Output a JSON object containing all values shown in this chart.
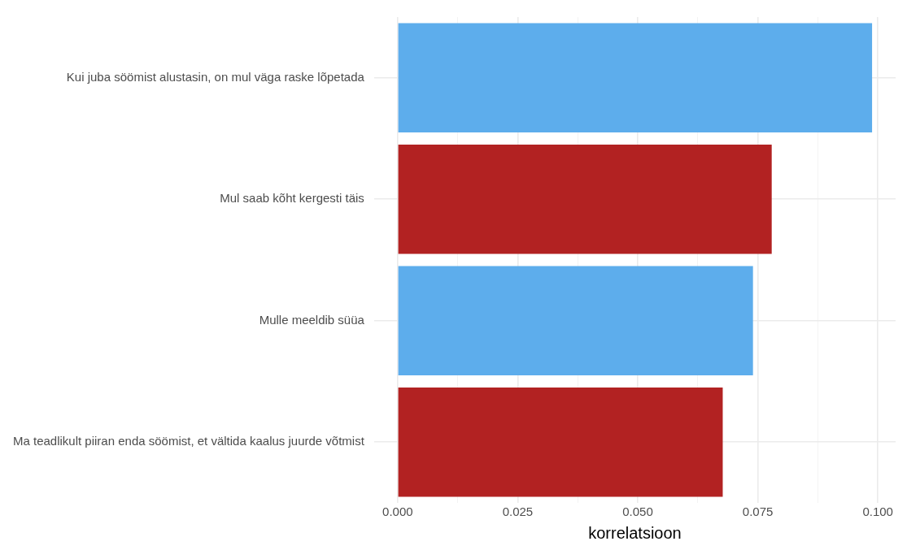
{
  "chart_data": {
    "type": "bar",
    "orientation": "horizontal",
    "xlabel": "korrelatsioon",
    "categories": [
      "Kui juba söömist alustasin, on mul väga raske lõpetada",
      "Mul saab kõht kergesti täis",
      "Mulle meeldib süüa",
      "Ma teadlikult piiran enda söömist, et vältida kaalus juurde võtmist"
    ],
    "values": [
      0.0988,
      0.0779,
      0.074,
      0.0677
    ],
    "colors": [
      "#5dadec",
      "#b22222",
      "#5dadec",
      "#b22222"
    ],
    "xlim": [
      -0.0049,
      0.1037
    ],
    "xticks": [
      {
        "value": 0,
        "label": "0.000"
      },
      {
        "value": 0.0125,
        "label": null
      },
      {
        "value": 0.025,
        "label": "0.025"
      },
      {
        "value": 0.0375,
        "label": null
      },
      {
        "value": 0.05,
        "label": "0.050"
      },
      {
        "value": 0.0625,
        "label": null
      },
      {
        "value": 0.075,
        "label": "0.075"
      },
      {
        "value": 0.0875,
        "label": null
      },
      {
        "value": 0.1,
        "label": "0.100"
      }
    ],
    "grid": true,
    "legend": false
  }
}
